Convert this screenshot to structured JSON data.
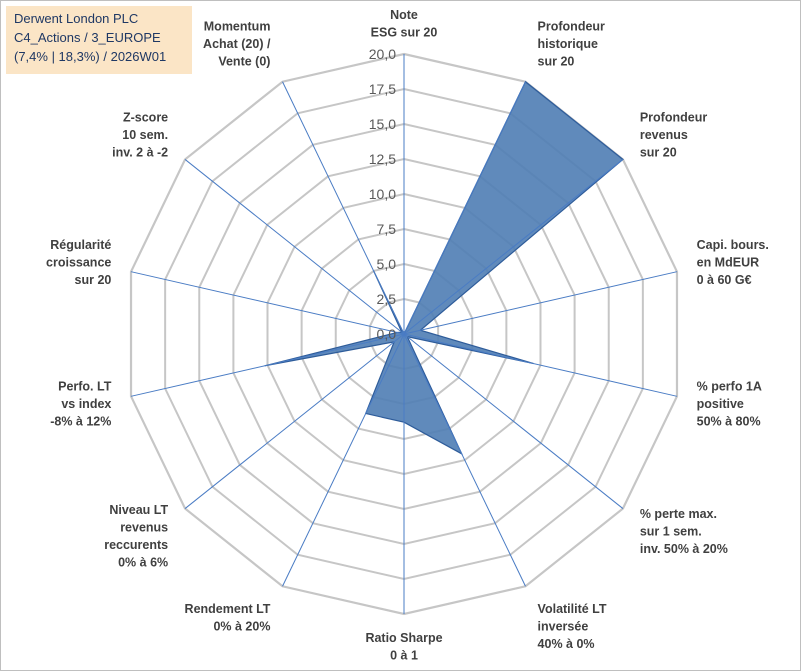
{
  "info_box": {
    "line1": "Derwent London PLC",
    "line2": "C4_Actions / 3_EUROPE",
    "line3": "(7,4% | 18,3%) / 2026W01"
  },
  "colors": {
    "fill": "#4f7db4",
    "stroke": "#2e5c9a",
    "grid": "#c6c6c6",
    "spoke": "#4a7cc4",
    "info_bg": "#fbe5c6"
  },
  "chart_data": {
    "type": "radar",
    "ylim": [
      0,
      20
    ],
    "ticks": [
      "0,0",
      "2,5",
      "5,0",
      "7,5",
      "10,0",
      "12,5",
      "15,0",
      "17,5",
      "20,0"
    ],
    "grid_steps": [
      2.5,
      5,
      7.5,
      10,
      12.5,
      15,
      17.5,
      20
    ],
    "axes": [
      {
        "lines": [
          "Note",
          "ESG sur 20"
        ]
      },
      {
        "lines": [
          "Profondeur",
          "historique",
          "sur 20"
        ]
      },
      {
        "lines": [
          "Profondeur",
          "revenus",
          "sur 20"
        ]
      },
      {
        "lines": [
          "Capi. bours.",
          "en MdEUR",
          "0 à 60 G€"
        ]
      },
      {
        "lines": [
          "% perfo 1A",
          "positive",
          "50% à 80%"
        ]
      },
      {
        "lines": [
          "% perte max.",
          "sur 1 sem.",
          "inv. 50% à 20%"
        ]
      },
      {
        "lines": [
          "Volatilité LT",
          "inversée",
          "40% à 0%"
        ]
      },
      {
        "lines": [
          "Ratio Sharpe",
          "0 à 1"
        ]
      },
      {
        "lines": [
          "Rendement LT",
          "0% à 20%"
        ]
      },
      {
        "lines": [
          "Niveau LT",
          "revenus",
          "reccurents",
          "0% à 6%"
        ]
      },
      {
        "lines": [
          "Perfo. LT",
          "vs index",
          "-8% à 12%"
        ]
      },
      {
        "lines": [
          "Régularité",
          "croissance",
          "sur 20"
        ]
      },
      {
        "lines": [
          "Z-score",
          "10 sem.",
          "inv. 2 à -2"
        ]
      },
      {
        "lines": [
          "Momentum",
          "Achat (20) /",
          "Vente (0)"
        ]
      }
    ],
    "values": [
      0,
      20,
      20,
      1.2,
      9.5,
      0.3,
      9.5,
      6.3,
      6.3,
      0.9,
      10.2,
      0.5,
      0.2,
      5.0
    ]
  }
}
